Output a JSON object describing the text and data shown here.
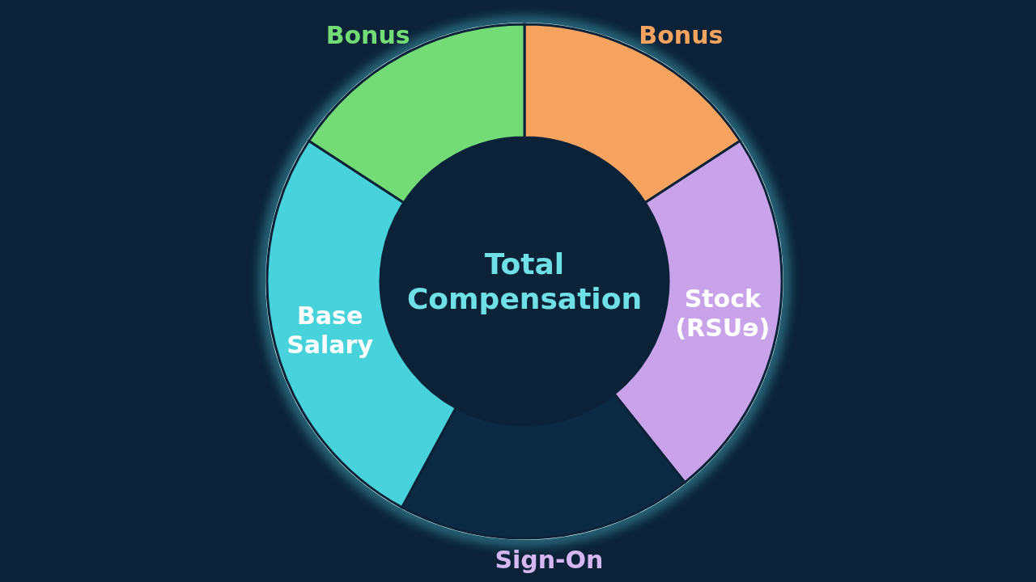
{
  "chart_data": {
    "type": "donut",
    "title": "Total Compensation",
    "categories": [
      "Bonus",
      "Stock (RSUɘ)",
      "Sign-On",
      "Base Salary",
      "Bonus"
    ],
    "values": [
      15.8,
      23.5,
      18.6,
      26.3,
      15.8
    ],
    "colors": [
      "#f6a35f",
      "#c9a3ea",
      "#0d2a44",
      "#48d3dc",
      "#73dc76"
    ]
  }
}
